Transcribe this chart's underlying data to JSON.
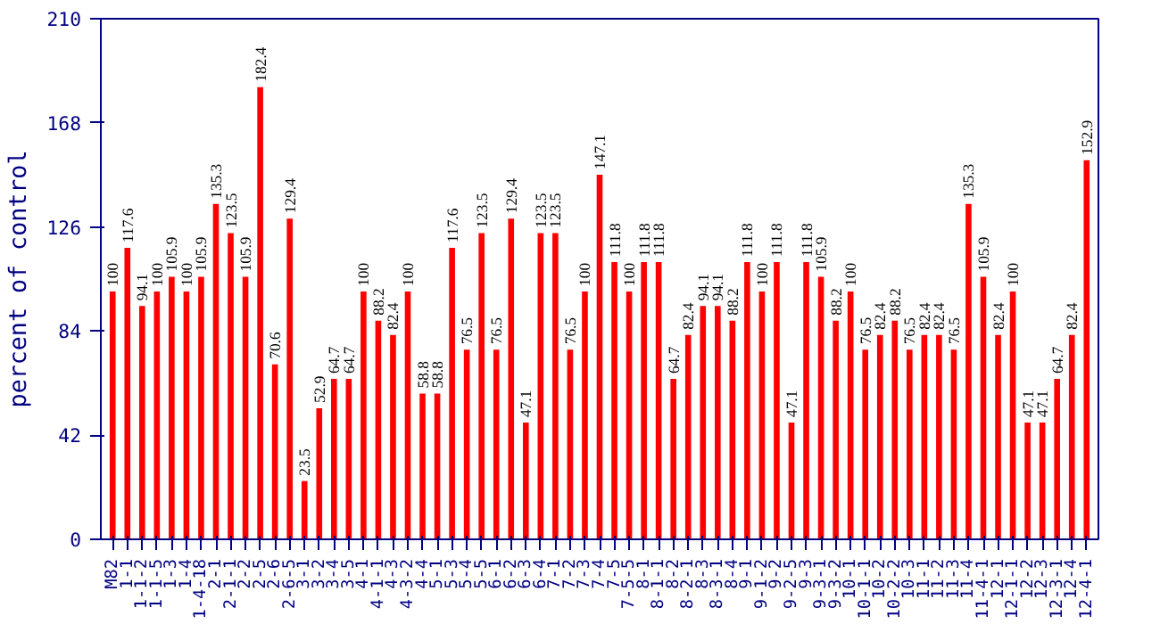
{
  "chart_data": {
    "type": "bar",
    "ylabel": "percent of control",
    "categories": [
      "M82",
      "1-1",
      "1-1-2",
      "1-1-5",
      "1-3",
      "1-4",
      "1-4-18",
      "2-1",
      "2-1-1",
      "2-2",
      "2-5",
      "2-6",
      "2-6-5",
      "3-1",
      "3-2",
      "3-4",
      "3-5",
      "4-1",
      "4-1-1",
      "4-3",
      "4-3-2",
      "4-4",
      "5-1",
      "5-3",
      "5-4",
      "5-5",
      "6-1",
      "6-2",
      "6-3",
      "6-4",
      "7-1",
      "7-2",
      "7-3",
      "7-4",
      "7-5",
      "7-5-5",
      "8-1",
      "8-1-1",
      "8-2",
      "8-2-1",
      "8-3",
      "8-3-1",
      "8-4",
      "9-1",
      "9-1-2",
      "9-2",
      "9-2-5",
      "9-3",
      "9-3-1",
      "9-3-2",
      "10-1",
      "10-1-1",
      "10-2",
      "10-2-2",
      "10-3",
      "11-1",
      "11-2",
      "11-3",
      "11-4",
      "11-4-1",
      "12-1",
      "12-1-1",
      "12-2",
      "12-3",
      "12-3-1",
      "12-4",
      "12-4-1"
    ],
    "values": [
      100,
      117.6,
      94.1,
      100,
      105.9,
      100,
      105.9,
      135.3,
      123.5,
      105.9,
      182.4,
      70.6,
      129.4,
      23.5,
      52.9,
      64.7,
      64.7,
      100,
      88.2,
      82.4,
      100,
      58.8,
      58.8,
      117.6,
      76.5,
      123.5,
      76.5,
      129.4,
      47.1,
      123.5,
      123.5,
      76.5,
      100,
      147.1,
      111.8,
      100,
      111.8,
      111.8,
      64.7,
      82.4,
      94.1,
      94.1,
      88.2,
      111.8,
      100,
      111.8,
      47.1,
      111.8,
      105.9,
      88.2,
      100,
      76.5,
      82.4,
      88.2,
      76.5,
      82.4,
      82.4,
      76.5,
      135.3,
      105.9,
      82.4,
      100,
      47.1,
      47.1,
      64.7,
      82.4,
      152.9
    ],
    "color": "#ff0000",
    "ylim": [
      0,
      210
    ],
    "yticks": [
      0,
      42,
      84,
      126,
      168,
      210
    ],
    "data_labels": true,
    "grid": false
  }
}
